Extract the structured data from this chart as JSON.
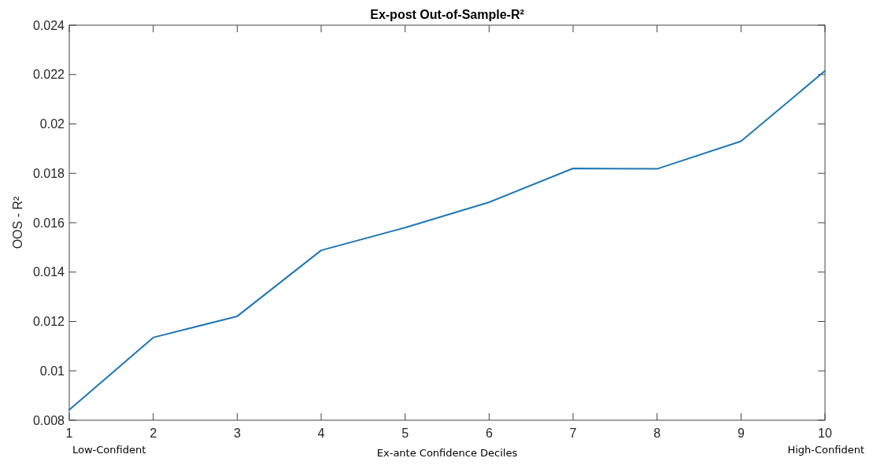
{
  "chart_data": {
    "type": "line",
    "title": "Ex-post Out-of-Sample-R²",
    "xlabel": "Ex-ante Confidence Deciles",
    "ylabel": "OOS - R²",
    "x": [
      1,
      2,
      3,
      4,
      5,
      6,
      7,
      8,
      9,
      10
    ],
    "series": [
      {
        "color": "#1f77b4",
        "values": [
          0.00842,
          0.01135,
          0.01221,
          0.01488,
          0.0158,
          0.01683,
          0.0182,
          0.01818,
          0.0193,
          0.02215
        ]
      }
    ],
    "xlim": [
      1,
      10
    ],
    "xticks": [
      1,
      2,
      3,
      4,
      5,
      6,
      7,
      8,
      9,
      10
    ],
    "ylim": [
      0.008,
      0.024
    ],
    "yticks": [
      0.008,
      0.01,
      0.012,
      0.014,
      0.016,
      0.018,
      0.02,
      0.022,
      0.024
    ],
    "grid": false,
    "marker": "none",
    "line_style": "solid",
    "annotations": [
      "Low-Confident",
      "High-Confident"
    ]
  }
}
